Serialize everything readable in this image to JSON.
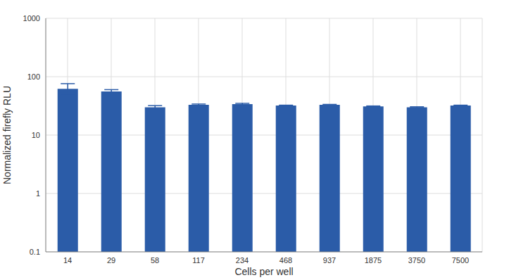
{
  "chart_data": {
    "type": "bar",
    "xlabel": "Cells per well",
    "ylabel": "Normalized firefly RLU",
    "categories": [
      "14",
      "29",
      "58",
      "117",
      "234",
      "468",
      "937",
      "1875",
      "3750",
      "7500"
    ],
    "values": [
      62,
      56,
      30,
      33,
      34,
      32,
      33,
      31,
      30,
      32
    ],
    "errors": [
      14,
      4,
      2,
      1,
      1,
      0.5,
      0.5,
      0.5,
      0.5,
      0.5
    ],
    "color": "#2b5ca8",
    "ylim": [
      0.1,
      1000
    ],
    "yticks": [
      0.1,
      1,
      10,
      100,
      1000
    ],
    "log": "y",
    "grid": true
  }
}
